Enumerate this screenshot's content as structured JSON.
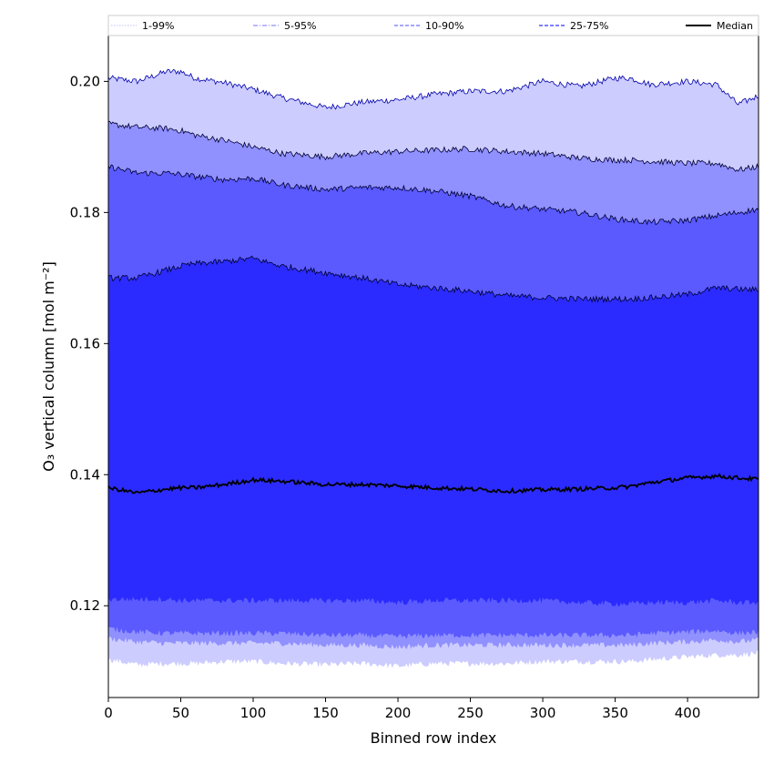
{
  "chart_data": {
    "type": "area",
    "title": "",
    "xlabel": "Binned row index",
    "ylabel": "O₃ vertical column [mol m⁻²]",
    "xlim": [
      0,
      449
    ],
    "ylim": [
      0.106,
      0.207
    ],
    "x_ticks": [
      0,
      50,
      100,
      150,
      200,
      250,
      300,
      350,
      400
    ],
    "y_ticks": [
      0.12,
      0.14,
      0.16,
      0.18,
      0.2
    ],
    "y_tick_labels": [
      "0.12",
      "0.14",
      "0.16",
      "0.18",
      "0.20"
    ],
    "grid": false,
    "legend_position": "top",
    "x": [
      0,
      20,
      40,
      50,
      60,
      80,
      100,
      120,
      150,
      175,
      200,
      225,
      250,
      275,
      300,
      325,
      350,
      360,
      375,
      400,
      420,
      435,
      449
    ],
    "bands": [
      {
        "name": "1-99%",
        "color": "#ccccff",
        "edge": "#0000aa",
        "upper": [
          0.2005,
          0.2,
          0.2015,
          0.2015,
          0.2005,
          0.1998,
          0.1988,
          0.1975,
          0.196,
          0.1968,
          0.1972,
          0.198,
          0.1985,
          0.1985,
          0.2,
          0.1992,
          0.2005,
          0.2005,
          0.1995,
          0.2,
          0.1995,
          0.1965,
          0.1978
        ],
        "lower": [
          0.1118,
          0.111,
          0.1112,
          0.1112,
          0.1112,
          0.1115,
          0.1115,
          0.1112,
          0.111,
          0.1112,
          0.1108,
          0.1112,
          0.1112,
          0.1112,
          0.1115,
          0.1115,
          0.1115,
          0.1115,
          0.1118,
          0.1122,
          0.1125,
          0.1125,
          0.1128
        ]
      },
      {
        "name": "5-95%",
        "color": "#9090ff",
        "edge": "#000033",
        "upper": [
          0.1935,
          0.193,
          0.1928,
          0.1925,
          0.1918,
          0.191,
          0.19,
          0.189,
          0.1885,
          0.189,
          0.1893,
          0.1895,
          0.1897,
          0.1893,
          0.189,
          0.1883,
          0.188,
          0.188,
          0.1878,
          0.1875,
          0.1875,
          0.1865,
          0.187
        ],
        "lower": [
          0.115,
          0.1145,
          0.1143,
          0.1143,
          0.1143,
          0.1143,
          0.1143,
          0.1143,
          0.114,
          0.114,
          0.1137,
          0.114,
          0.114,
          0.114,
          0.114,
          0.114,
          0.114,
          0.114,
          0.1143,
          0.1145,
          0.1148,
          0.1145,
          0.1148
        ]
      },
      {
        "name": "10-90%",
        "color": "#5a5aff",
        "edge": "#000033",
        "upper": [
          0.187,
          0.186,
          0.186,
          0.1858,
          0.1855,
          0.185,
          0.1852,
          0.1842,
          0.1835,
          0.1838,
          0.1838,
          0.1833,
          0.1825,
          0.181,
          0.1805,
          0.18,
          0.179,
          0.1788,
          0.1785,
          0.1788,
          0.1795,
          0.18,
          0.1805
        ],
        "lower": [
          0.1165,
          0.116,
          0.1158,
          0.1158,
          0.1158,
          0.1158,
          0.1158,
          0.1158,
          0.1155,
          0.1155,
          0.1153,
          0.1155,
          0.1155,
          0.1155,
          0.1155,
          0.1155,
          0.1155,
          0.1155,
          0.1158,
          0.116,
          0.1162,
          0.1158,
          0.116
        ]
      },
      {
        "name": "25-75%",
        "color": "#2b2bff",
        "edge": "#000033",
        "upper": [
          0.17,
          0.17,
          0.1712,
          0.1718,
          0.1722,
          0.1725,
          0.173,
          0.1718,
          0.1708,
          0.17,
          0.169,
          0.1685,
          0.168,
          0.1673,
          0.167,
          0.1668,
          0.1668,
          0.1668,
          0.167,
          0.1675,
          0.1685,
          0.1683,
          0.1682
        ],
        "lower": [
          0.121,
          0.121,
          0.121,
          0.1208,
          0.1208,
          0.1208,
          0.1208,
          0.1208,
          0.1208,
          0.1208,
          0.1205,
          0.1208,
          0.1208,
          0.1208,
          0.1208,
          0.1205,
          0.1203,
          0.1203,
          0.1205,
          0.1205,
          0.1208,
          0.1205,
          0.1205
        ]
      }
    ],
    "median": {
      "name": "Median",
      "color": "#000000",
      "values": [
        0.138,
        0.1372,
        0.1378,
        0.138,
        0.138,
        0.1385,
        0.1392,
        0.139,
        0.1385,
        0.1385,
        0.1383,
        0.138,
        0.1378,
        0.1375,
        0.1377,
        0.1378,
        0.138,
        0.1382,
        0.1388,
        0.1395,
        0.1398,
        0.1395,
        0.1393
      ]
    },
    "legend": [
      {
        "label": "1-99%",
        "color": "#ccccff",
        "style": "dotted"
      },
      {
        "label": "5-95%",
        "color": "#9090ff",
        "style": "dashdot"
      },
      {
        "label": "10-90%",
        "color": "#7070ff",
        "style": "dashed"
      },
      {
        "label": "25-75%",
        "color": "#3030ff",
        "style": "dashed"
      },
      {
        "label": "Median",
        "color": "#000000",
        "style": "solid"
      }
    ]
  }
}
